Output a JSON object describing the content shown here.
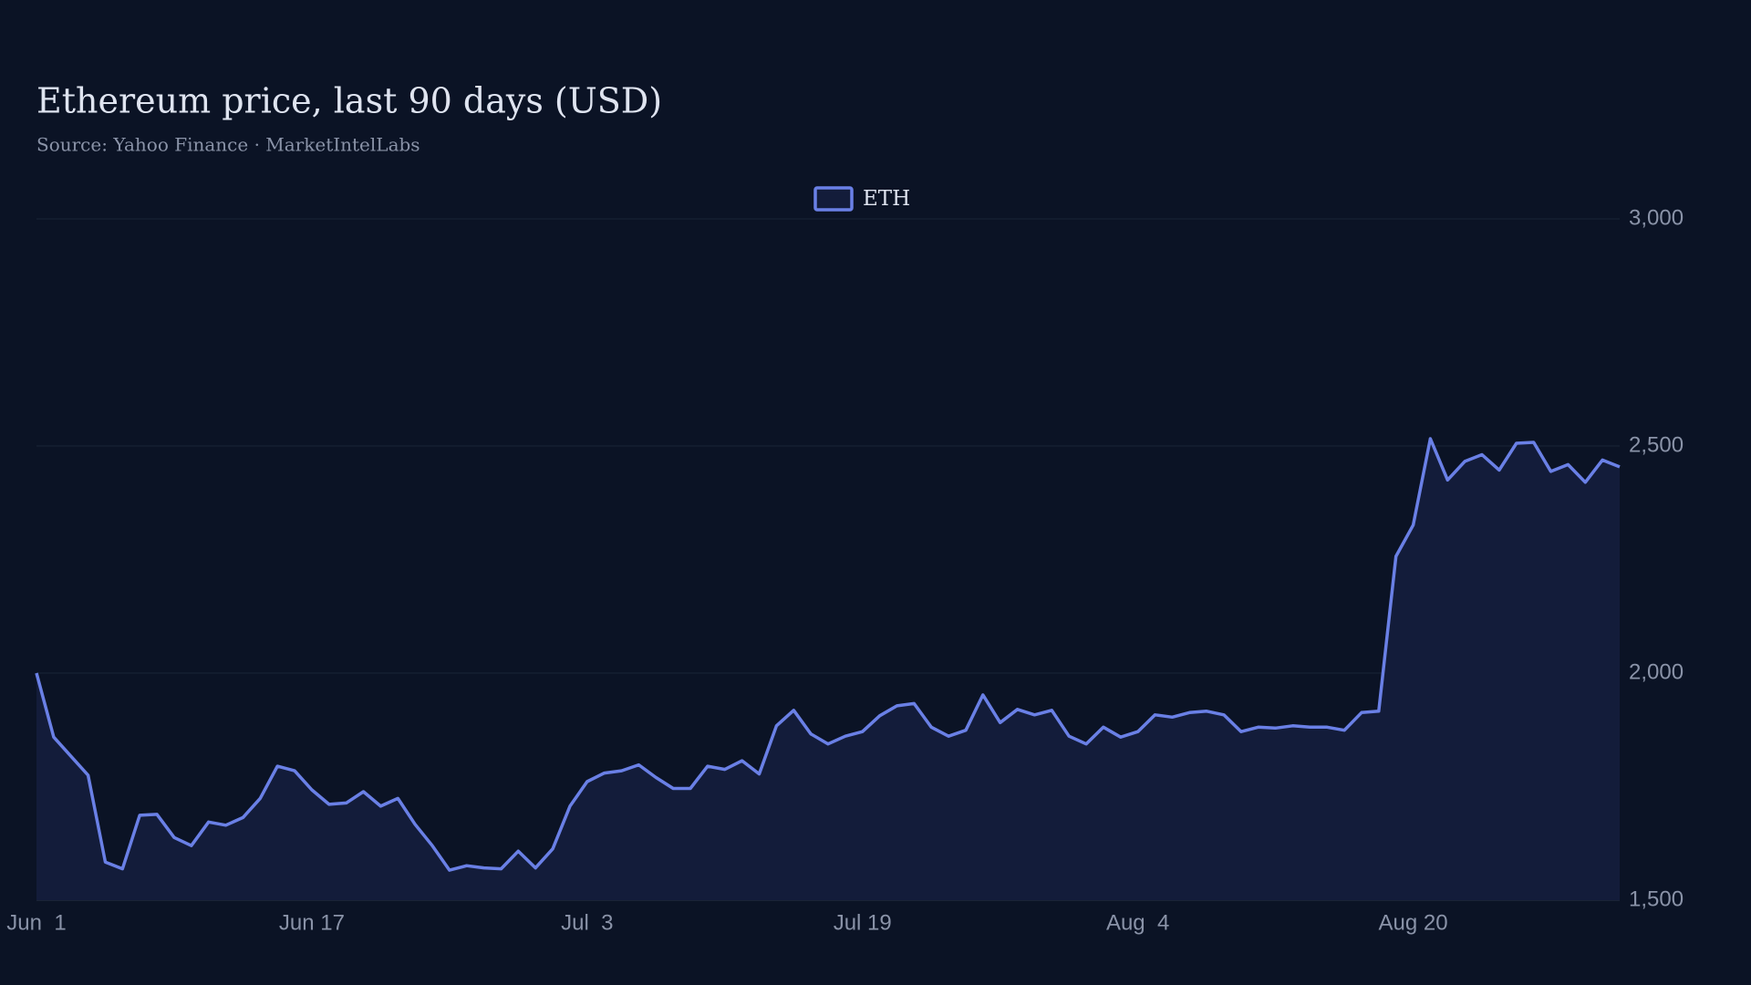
{
  "chart_data": {
    "type": "area",
    "title": "Ethereum price, last 90 days (USD)",
    "subtitle": "Source: Yahoo Finance · MarketIntelLabs",
    "categories": [
      "Jun 1",
      "Jun 2",
      "Jun 3",
      "Jun 4",
      "Jun 5",
      "Jun 6",
      "Jun 7",
      "Jun 8",
      "Jun 9",
      "Jun 10",
      "Jun 11",
      "Jun 12",
      "Jun 13",
      "Jun 14",
      "Jun 15",
      "Jun 16",
      "Jun 17",
      "Jun 18",
      "Jun 19",
      "Jun 20",
      "Jun 21",
      "Jun 22",
      "Jun 23",
      "Jun 24",
      "Jun 25",
      "Jun 26",
      "Jun 27",
      "Jun 28",
      "Jun 29",
      "Jun 30",
      "Jul 1",
      "Jul 2",
      "Jul 3",
      "Jul 4",
      "Jul 5",
      "Jul 6",
      "Jul 7",
      "Jul 8",
      "Jul 9",
      "Jul 10",
      "Jul 11",
      "Jul 12",
      "Jul 13",
      "Jul 14",
      "Jul 15",
      "Jul 16",
      "Jul 17",
      "Jul 18",
      "Jul 19",
      "Jul 20",
      "Jul 21",
      "Jul 22",
      "Jul 23",
      "Jul 24",
      "Jul 25",
      "Jul 26",
      "Jul 27",
      "Jul 28",
      "Jul 29",
      "Jul 30",
      "Jul 31",
      "Aug 1",
      "Aug 2",
      "Aug 3",
      "Aug 4",
      "Aug 5",
      "Aug 6",
      "Aug 7",
      "Aug 8",
      "Aug 9",
      "Aug 10",
      "Aug 11",
      "Aug 12",
      "Aug 13",
      "Aug 14",
      "Aug 15",
      "Aug 16",
      "Aug 17",
      "Aug 18",
      "Aug 19",
      "Aug 20",
      "Aug 21",
      "Aug 22",
      "Aug 23",
      "Aug 24",
      "Aug 25",
      "Aug 26",
      "Aug 27",
      "Aug 28",
      "Aug 29",
      "Aug 30",
      "Aug 31",
      "Sep 1"
    ],
    "series": [
      {
        "name": "ETH",
        "color": "#6a80e6",
        "fill": "#131c3a",
        "values": [
          2000,
          1859,
          1817,
          1775,
          1584,
          1569,
          1687,
          1689,
          1638,
          1620,
          1672,
          1665,
          1682,
          1724,
          1795,
          1785,
          1743,
          1711,
          1714,
          1739,
          1707,
          1724,
          1667,
          1620,
          1566,
          1576,
          1571,
          1569,
          1608,
          1571,
          1613,
          1707,
          1761,
          1780,
          1785,
          1798,
          1770,
          1746,
          1746,
          1795,
          1788,
          1807,
          1778,
          1884,
          1918,
          1866,
          1844,
          1861,
          1871,
          1906,
          1928,
          1933,
          1881,
          1861,
          1874,
          1952,
          1891,
          1920,
          1908,
          1918,
          1861,
          1844,
          1881,
          1859,
          1871,
          1908,
          1903,
          1913,
          1916,
          1908,
          1871,
          1881,
          1879,
          1884,
          1881,
          1881,
          1874,
          1913,
          1916,
          2257,
          2326,
          2516,
          2425,
          2466,
          2481,
          2447,
          2506,
          2508,
          2444,
          2459,
          2420,
          2469,
          2454
        ]
      }
    ],
    "ylim": [
      1500,
      3000
    ],
    "yticks": [
      {
        "value": 1500,
        "label": "1,500"
      },
      {
        "value": 2000,
        "label": "2,000"
      },
      {
        "value": 2500,
        "label": "2,500"
      },
      {
        "value": 3000,
        "label": "3,000"
      }
    ],
    "xticks": [
      {
        "value": "Jun 1",
        "label": "Jun  1"
      },
      {
        "value": "Jun 17",
        "label": "Jun 17"
      },
      {
        "value": "Jul 3",
        "label": "Jul  3"
      },
      {
        "value": "Jul 19",
        "label": "Jul 19"
      },
      {
        "value": "Aug 4",
        "label": "Aug  4"
      },
      {
        "value": "Aug 20",
        "label": "Aug 20"
      }
    ],
    "grid": true,
    "legend": "top"
  }
}
